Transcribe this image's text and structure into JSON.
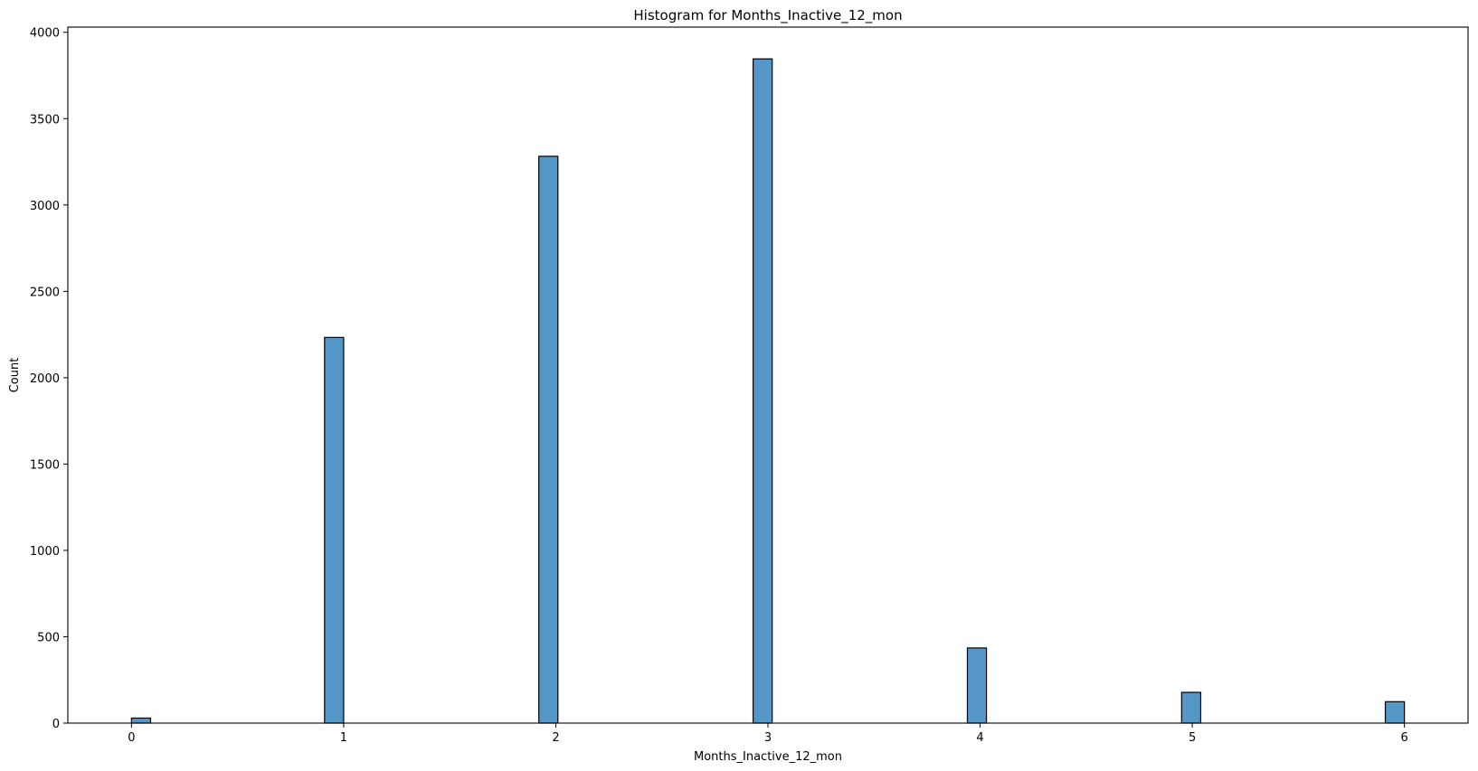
{
  "chart_data": {
    "type": "bar",
    "title": "Histogram for Months_Inactive_12_mon",
    "xlabel": "Months_Inactive_12_mon",
    "ylabel": "Count",
    "bins": [
      {
        "x_start": 0.0,
        "x_end": 0.09,
        "count": 29
      },
      {
        "x_start": 0.91,
        "x_end": 1.0,
        "count": 2233
      },
      {
        "x_start": 1.92,
        "x_end": 2.01,
        "count": 3282
      },
      {
        "x_start": 2.93,
        "x_end": 3.02,
        "count": 3846
      },
      {
        "x_start": 3.94,
        "x_end": 4.03,
        "count": 435
      },
      {
        "x_start": 4.95,
        "x_end": 5.04,
        "count": 178
      },
      {
        "x_start": 5.91,
        "x_end": 6.0,
        "count": 124
      }
    ],
    "xlim": [
      -0.3,
      6.3
    ],
    "ylim": [
      0,
      4030
    ],
    "x_ticks": [
      "0",
      "1",
      "2",
      "3",
      "4",
      "5",
      "6"
    ],
    "y_ticks": [
      "0",
      "500",
      "1000",
      "1500",
      "2000",
      "2500",
      "3000",
      "3500",
      "4000"
    ],
    "bar_color": "#5496c6",
    "edge_color": "#000000",
    "grid": false,
    "legend": "none"
  }
}
